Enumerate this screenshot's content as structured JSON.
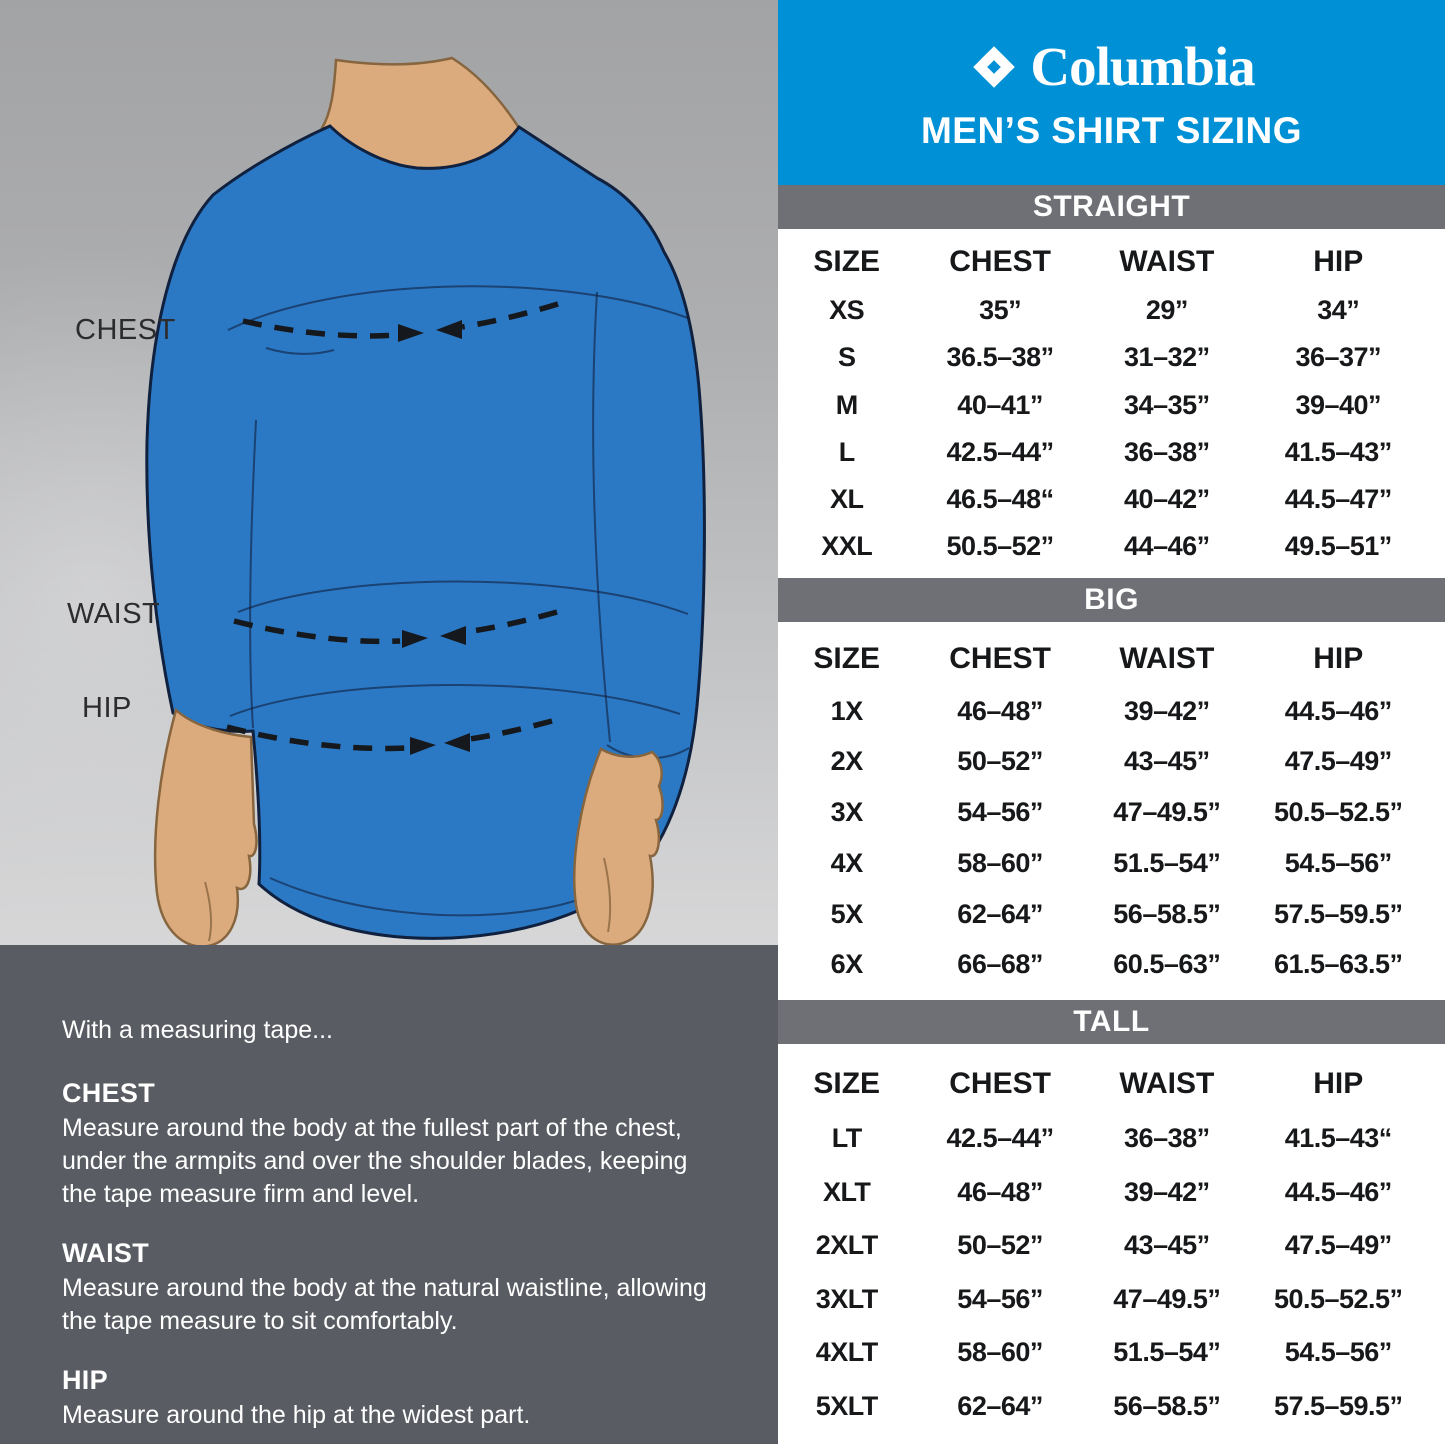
{
  "brand": {
    "logo_text": "Columbia",
    "title": "MEN’S SHIRT SIZING"
  },
  "figure": {
    "chest_label": "CHEST",
    "waist_label": "WAIST",
    "hip_label": "HIP"
  },
  "instructions": {
    "intro": "With a measuring tape...",
    "items": [
      {
        "heading": "CHEST",
        "text": "Measure around the body at the fullest part of the chest, under the armpits and over the shoulder blades, keeping the tape measure firm and level."
      },
      {
        "heading": "WAIST",
        "text": "Measure around the body at the natural waistline, allowing the tape measure to sit comfortably."
      },
      {
        "heading": "HIP",
        "text": "Measure around the hip at the widest part."
      }
    ]
  },
  "sizing_tables": {
    "sections": [
      {
        "title": "STRAIGHT",
        "columns": [
          "SIZE",
          "CHEST",
          "WAIST",
          "HIP"
        ],
        "rows": [
          [
            "XS",
            "35”",
            "29”",
            "34”"
          ],
          [
            "S",
            "36.5–38”",
            "31–32”",
            "36–37”"
          ],
          [
            "M",
            "40–41”",
            "34–35”",
            "39–40”"
          ],
          [
            "L",
            "42.5–44”",
            "36–38”",
            "41.5–43”"
          ],
          [
            "XL",
            "46.5–48“",
            "40–42”",
            "44.5–47”"
          ],
          [
            "XXL",
            "50.5–52”",
            "44–46”",
            "49.5–51”"
          ]
        ]
      },
      {
        "title": "BIG",
        "columns": [
          "SIZE",
          "CHEST",
          "WAIST",
          "HIP"
        ],
        "rows": [
          [
            "1X",
            "46–48”",
            "39–42”",
            "44.5–46”"
          ],
          [
            "2X",
            "50–52”",
            "43–45”",
            "47.5–49”"
          ],
          [
            "3X",
            "54–56”",
            "47–49.5”",
            "50.5–52.5”"
          ],
          [
            "4X",
            "58–60”",
            "51.5–54”",
            "54.5–56”"
          ],
          [
            "5X",
            "62–64”",
            "56–58.5”",
            "57.5–59.5”"
          ],
          [
            "6X",
            "66–68”",
            "60.5–63”",
            "61.5–63.5”"
          ]
        ]
      },
      {
        "title": "TALL",
        "columns": [
          "SIZE",
          "CHEST",
          "WAIST",
          "HIP"
        ],
        "rows": [
          [
            "LT",
            "42.5–44”",
            "36–38”",
            "41.5–43“"
          ],
          [
            "XLT",
            "46–48”",
            "39–42”",
            "44.5–46”"
          ],
          [
            "2XLT",
            "50–52”",
            "43–45”",
            "47.5–49”"
          ],
          [
            "3XLT",
            "54–56”",
            "47–49.5”",
            "50.5–52.5”"
          ],
          [
            "4XLT",
            "58–60”",
            "51.5–54”",
            "54.5–56”"
          ],
          [
            "5XLT",
            "62–64”",
            "56–58.5”",
            "57.5–59.5”"
          ]
        ]
      }
    ]
  },
  "colors": {
    "brand_blue": "#0090d5",
    "bar_gray": "#6e7075",
    "instruction_panel": "#595c62",
    "shirt_blue": "#2b79c5",
    "skin": "#dcab7d",
    "table_text": "#17181a"
  }
}
